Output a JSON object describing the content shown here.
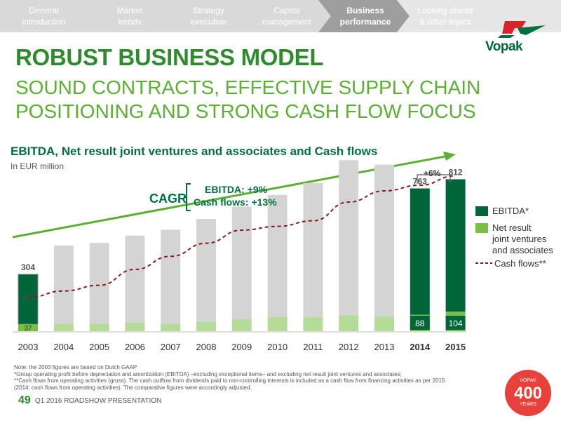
{
  "nav": {
    "items": [
      {
        "label": "General\nintroduction",
        "active": false
      },
      {
        "label": "Market\ntrends",
        "active": false
      },
      {
        "label": "Strategy\nexecution",
        "active": false
      },
      {
        "label": "Capital\nmanagement",
        "active": false
      },
      {
        "label": "Business\nperformance",
        "active": true
      },
      {
        "label": "Looking ahead\n& other topics",
        "active": false
      }
    ]
  },
  "logo": {
    "text": "Vopak"
  },
  "page": {
    "title": "ROBUST BUSINESS MODEL",
    "subtitle": "SOUND CONTRACTS, EFFECTIVE SUPPLY CHAIN\nPOSITIONING AND STRONG CASH FLOW FOCUS"
  },
  "chart": {
    "title": "EBITDA, Net result joint ventures and associates and Cash flows",
    "subtitle": "In EUR million",
    "cagr_label": "CAGR",
    "cagr_ebitda": "EBITDA: +9%",
    "cagr_cash": "Cash flows: +13%",
    "growth_label": "+6%"
  },
  "chart_data": {
    "type": "bar",
    "categories": [
      "2003",
      "2004",
      "2005",
      "2006",
      "2007",
      "2008",
      "2009",
      "2010",
      "2011",
      "2012",
      "2013",
      "2014",
      "2015"
    ],
    "highlight_categories": [
      "2003",
      "2014",
      "2015"
    ],
    "bold_categories": [
      "2014",
      "2015"
    ],
    "series": [
      {
        "name": "EBITDA*",
        "values": [
          267,
          420,
          431,
          466,
          502,
          550,
          602,
          653,
          718,
          830,
          812,
          675,
          708
        ]
      },
      {
        "name": "Net result joint ventures and associates",
        "values": [
          37,
          38,
          41,
          45,
          40,
          50,
          64,
          75,
          74,
          84,
          78,
          88,
          104
        ]
      },
      {
        "name": "Cash flows**",
        "values": [
          180,
          215,
          245,
          330,
          400,
          470,
          540,
          560,
          590,
          690,
          750,
          780,
          830
        ]
      }
    ],
    "data_labels": [
      {
        "category": "2003",
        "text": "304",
        "type": "total"
      },
      {
        "category": "2003",
        "text": "37",
        "type": "jv"
      },
      {
        "category": "2014",
        "text": "763",
        "type": "total"
      },
      {
        "category": "2014",
        "text": "88",
        "type": "jv"
      },
      {
        "category": "2015",
        "text": "812",
        "type": "total"
      },
      {
        "category": "2015",
        "text": "104",
        "type": "jv"
      }
    ],
    "ylim": [
      0,
      900
    ],
    "legend_position": "right",
    "grid": false
  },
  "legend": {
    "ebitda": "EBITDA*",
    "jv": "Net result\njoint ventures\nand associates",
    "cash": "Cash flows**"
  },
  "notes": [
    "Note: the 2003 figures are based on Dutch GAAP",
    "*Group operating profit before depreciation and amortization (EBITDA) –excluding exceptional items– and excluding net result joint ventures and associates;",
    "**Cash flows from operating activities (gross). The cash outflow from dividends paid to non-controlling interests is included as a cash flow from financing activities as per 2015",
    "(2014: cash flows from operating activities). The comparative figures were accordingly adjusted."
  ],
  "footer": {
    "page_number": "49",
    "text": "Q1 2016 ROADSHOW PRESENTATION"
  },
  "badge": {
    "top": "VOPAK",
    "number": "400",
    "bottom": "YEARS"
  },
  "colors": {
    "ebitda_highlight": "#00663a",
    "jv": "#77c043",
    "grey_bar": "#d4d4d4",
    "cash_line": "#8b1a1a",
    "trend_arrow": "#5ab031",
    "badge_red": "#e8403a"
  }
}
